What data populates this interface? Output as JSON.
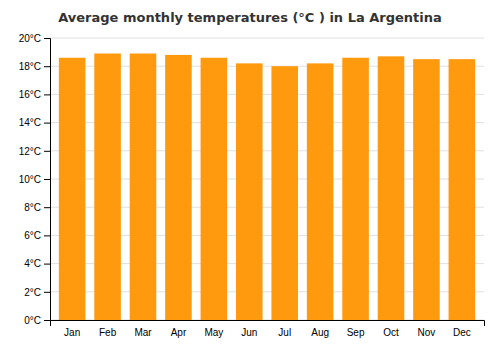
{
  "chart_data": {
    "type": "bar",
    "title": "Average monthly temperatures (°C ) in La Argentina",
    "categories": [
      "Jan",
      "Feb",
      "Mar",
      "Apr",
      "May",
      "Jun",
      "Jul",
      "Aug",
      "Sep",
      "Oct",
      "Nov",
      "Dec"
    ],
    "values": [
      18.6,
      18.9,
      18.9,
      18.8,
      18.6,
      18.2,
      18.0,
      18.2,
      18.6,
      18.7,
      18.5,
      18.5
    ],
    "color": "#ff990d",
    "ylim": [
      0,
      20
    ],
    "yticks": [
      {
        "value": 0,
        "label": "0°C"
      },
      {
        "value": 2,
        "label": "2°C"
      },
      {
        "value": 4,
        "label": "4°C"
      },
      {
        "value": 6,
        "label": "6°C"
      },
      {
        "value": 8,
        "label": "8°C"
      },
      {
        "value": 10,
        "label": "10°C"
      },
      {
        "value": 12,
        "label": "12°C"
      },
      {
        "value": 14,
        "label": "14°C"
      },
      {
        "value": 16,
        "label": "16°C"
      },
      {
        "value": 18,
        "label": "18°C"
      },
      {
        "value": 20,
        "label": "20°C"
      }
    ],
    "grid": true
  }
}
